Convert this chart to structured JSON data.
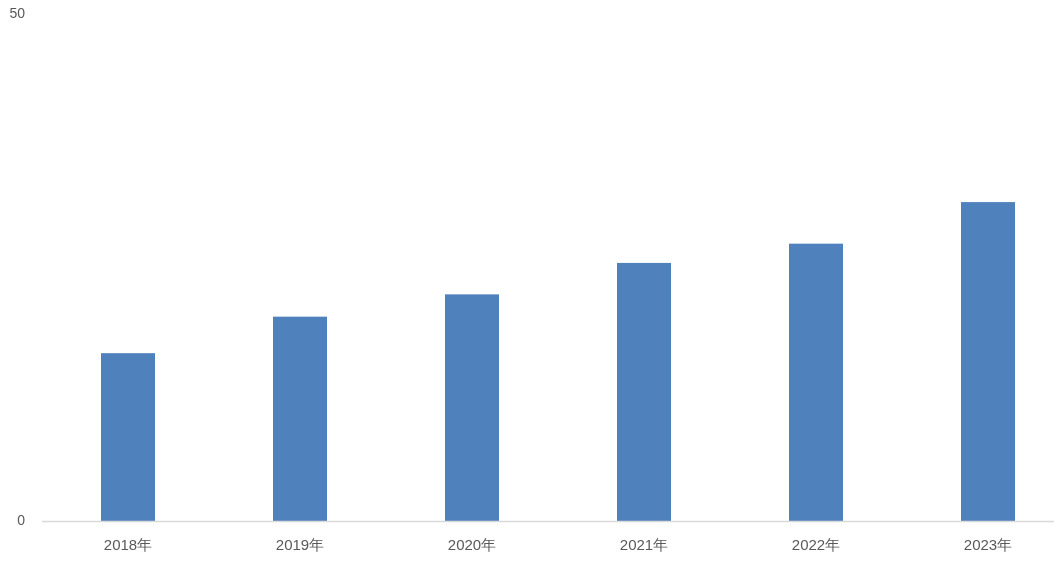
{
  "chart_data": {
    "type": "bar",
    "categories": [
      "2018年",
      "2019年",
      "2020年",
      "2021年",
      "2022年",
      "2023年"
    ],
    "values": [
      16.6,
      20.2,
      22.4,
      25.5,
      27.4,
      31.5
    ],
    "color": "#4f81bd",
    "ylim": [
      0,
      50
    ],
    "yticks": [
      0,
      50
    ]
  }
}
